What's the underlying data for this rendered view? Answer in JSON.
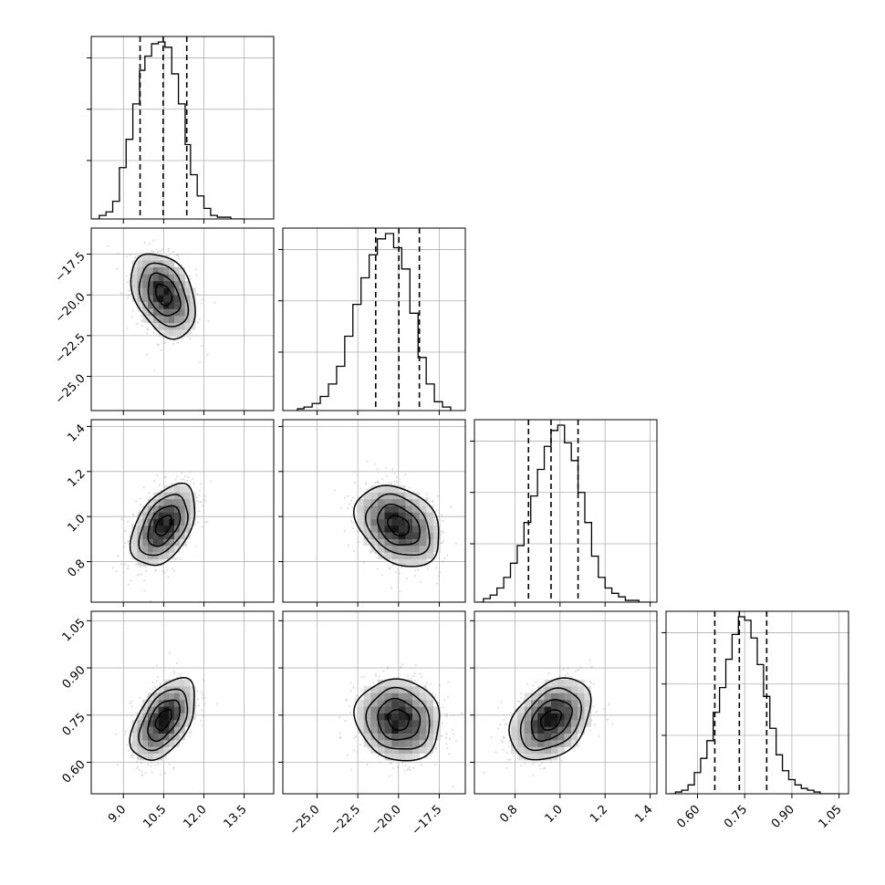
{
  "chart_data": {
    "type": "corner",
    "parameters": [
      {
        "ticks": [
          9.0,
          10.5,
          12.0,
          13.5
        ],
        "tick_labels": [
          "9.0",
          "10.5",
          "12.0",
          "13.5"
        ],
        "range": [
          7.8,
          14.6
        ],
        "mean": 10.5,
        "sd": 0.6,
        "quantiles": [
          9.62,
          10.48,
          11.36
        ],
        "hist_bins": [
          7.85,
          8.1,
          8.35,
          8.6,
          8.85,
          9.1,
          9.35,
          9.6,
          9.8,
          10.05,
          10.3,
          10.55,
          10.8,
          11.05,
          11.3,
          11.5,
          11.75,
          12.0,
          12.25,
          12.5,
          12.75,
          13.0,
          13.25,
          13.5
        ],
        "hist_heights": [
          0.0,
          0.02,
          0.04,
          0.1,
          0.29,
          0.45,
          0.65,
          0.84,
          0.92,
          0.99,
          1.0,
          0.97,
          0.82,
          0.65,
          0.42,
          0.25,
          0.13,
          0.06,
          0.02,
          0.01,
          0.01,
          0.0,
          0.0
        ]
      },
      {
        "ticks": [
          -25.0,
          -22.5,
          -20.0,
          -17.5
        ],
        "tick_labels": [
          "−25.0",
          "−22.5",
          "−20.0",
          "−17.5"
        ],
        "range": [
          -27.1,
          -15.9
        ],
        "mean": -20.0,
        "sd": 1.3,
        "quantiles": [
          -21.4,
          -19.98,
          -18.72
        ],
        "hist_bins": [
          -26.2,
          -25.8,
          -25.3,
          -24.8,
          -24.3,
          -23.8,
          -23.3,
          -22.8,
          -22.3,
          -21.8,
          -21.3,
          -20.8,
          -20.3,
          -19.8,
          -19.3,
          -18.8,
          -18.3,
          -17.8,
          -17.3,
          -16.8
        ],
        "hist_heights": [
          0.01,
          0.02,
          0.04,
          0.08,
          0.15,
          0.25,
          0.42,
          0.6,
          0.75,
          0.88,
          0.97,
          1.0,
          0.92,
          0.8,
          0.55,
          0.3,
          0.15,
          0.05,
          0.02
        ]
      },
      {
        "ticks": [
          0.8,
          1.0,
          1.2,
          1.4
        ],
        "tick_labels": [
          "0.8",
          "1.0",
          "1.2",
          "1.4"
        ],
        "range": [
          0.62,
          1.43
        ],
        "mean": 0.96,
        "sd": 0.09,
        "quantiles": [
          0.86,
          0.96,
          1.08
        ],
        "hist_bins": [
          0.63,
          0.66,
          0.69,
          0.72,
          0.75,
          0.78,
          0.81,
          0.84,
          0.87,
          0.9,
          0.93,
          0.96,
          0.99,
          1.02,
          1.05,
          1.08,
          1.11,
          1.14,
          1.17,
          1.2,
          1.23,
          1.26,
          1.29,
          1.32,
          1.35,
          1.38,
          1.41
        ],
        "hist_heights": [
          0.0,
          0.02,
          0.04,
          0.08,
          0.14,
          0.22,
          0.32,
          0.45,
          0.6,
          0.75,
          0.88,
          0.97,
          1.0,
          0.9,
          0.8,
          0.62,
          0.45,
          0.26,
          0.14,
          0.08,
          0.05,
          0.03,
          0.01,
          0.01,
          0.0,
          0.0
        ]
      },
      {
        "ticks": [
          0.6,
          0.75,
          0.9,
          1.05
        ],
        "tick_labels": [
          "0.60",
          "0.75",
          "0.90",
          "1.05"
        ],
        "range": [
          0.5,
          1.08
        ],
        "mean": 0.735,
        "sd": 0.065,
        "quantiles": [
          0.655,
          0.733,
          0.82
        ],
        "hist_bins": [
          0.51,
          0.53,
          0.55,
          0.57,
          0.59,
          0.61,
          0.63,
          0.65,
          0.67,
          0.69,
          0.71,
          0.73,
          0.75,
          0.77,
          0.79,
          0.81,
          0.83,
          0.85,
          0.87,
          0.89,
          0.91,
          0.93,
          0.95,
          0.97,
          0.99,
          1.01,
          1.03,
          1.05
        ],
        "hist_heights": [
          0.0,
          0.01,
          0.02,
          0.05,
          0.12,
          0.2,
          0.3,
          0.46,
          0.6,
          0.76,
          0.9,
          1.0,
          0.98,
          0.88,
          0.73,
          0.55,
          0.37,
          0.22,
          0.13,
          0.08,
          0.05,
          0.03,
          0.02,
          0.01,
          0.0,
          0.0,
          0.0
        ]
      }
    ],
    "correlations": {
      "1-0": -0.35,
      "2-0": 0.45,
      "2-1": -0.3,
      "3-0": 0.5,
      "3-1": -0.1,
      "3-2": 0.35
    },
    "contour_levels_sigma": [
      0.5,
      1.0,
      1.5,
      2.0
    ],
    "scatter_points_per_panel": 700,
    "colors": {
      "line": "#000000",
      "points": "#9a9a9a",
      "grid": "#b0b0b0"
    },
    "grid": true,
    "title": "",
    "xlabel": "",
    "ylabel": ""
  }
}
